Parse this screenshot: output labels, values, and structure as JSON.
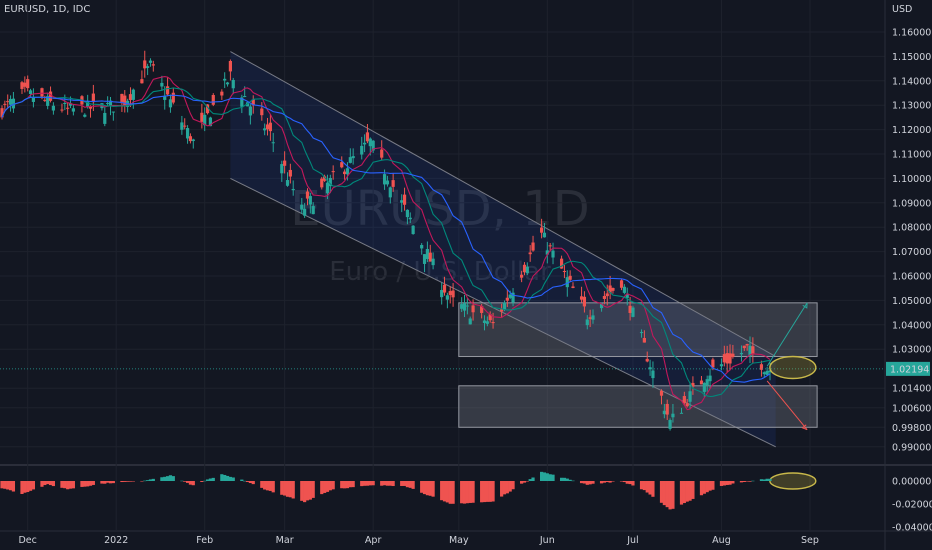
{
  "header": {
    "symbol": "EURUSD",
    "sep": ", ",
    "interval": "1D",
    "source": "IDC"
  },
  "watermark": {
    "ticker": "EURUSD, 1D",
    "name": "Euro / U.S. Dollar"
  },
  "price_axis": {
    "currency": "USD"
  },
  "last_price": {
    "label": "1.02194",
    "value": 1.02194,
    "color": "#26a69a"
  },
  "colors": {
    "up": "#26a69a",
    "down": "#ef5350",
    "ma_red": "#c2185b",
    "ma_teal": "#00897b",
    "ma_blue": "#2962ff"
  },
  "chart_data": [
    {
      "type": "candlestick",
      "title": "",
      "yticks": [
        1.16,
        1.15,
        1.14,
        1.13,
        1.12,
        1.11,
        1.1,
        1.09,
        1.08,
        1.07,
        1.06,
        1.05,
        1.04,
        1.03,
        1.014,
        1.006,
        0.998,
        0.99
      ],
      "ytick_labels": [
        "1.16000",
        "1.15000",
        "1.14000",
        "1.13000",
        "1.12000",
        "1.11000",
        "1.10000",
        "1.09000",
        "1.08000",
        "1.07000",
        "1.06000",
        "1.05000",
        "1.04000",
        "1.03000",
        "1.01400",
        "1.00600",
        "0.99800",
        "0.99000"
      ],
      "xtick_labels": [
        "Dec",
        "2022",
        "Feb",
        "Mar",
        "Apr",
        "May",
        "Jun",
        "Jul",
        "Aug",
        "Sep"
      ],
      "close_path": [
        [
          "2021-11-22",
          1.128
        ],
        [
          "2021-11-30",
          1.135
        ],
        [
          "2021-12-15",
          1.128
        ],
        [
          "2022-01-03",
          1.13
        ],
        [
          "2022-01-13",
          1.146
        ],
        [
          "2022-01-28",
          1.115
        ],
        [
          "2022-02-10",
          1.142
        ],
        [
          "2022-02-24",
          1.118
        ],
        [
          "2022-03-07",
          1.087
        ],
        [
          "2022-03-31",
          1.115
        ],
        [
          "2022-04-14",
          1.083
        ],
        [
          "2022-04-28",
          1.05
        ],
        [
          "2022-05-13",
          1.04
        ],
        [
          "2022-05-30",
          1.077
        ],
        [
          "2022-06-15",
          1.044
        ],
        [
          "2022-06-27",
          1.058
        ],
        [
          "2022-07-14",
          1.0
        ],
        [
          "2022-07-27",
          1.02
        ],
        [
          "2022-08-10",
          1.03
        ],
        [
          "2022-08-17",
          1.0219
        ]
      ],
      "zones": [
        {
          "name": "resistance-zone",
          "from": "2022-05-01",
          "to": "2022-08-31",
          "top": 1.049,
          "bottom": 1.027
        },
        {
          "name": "support-zone",
          "from": "2022-05-01",
          "to": "2022-08-31",
          "top": 1.015,
          "bottom": 0.998
        }
      ],
      "channel": {
        "upper": [
          [
            "2022-02-10",
            1.152
          ],
          [
            "2022-08-20",
            1.027
          ]
        ],
        "lower": [
          [
            "2022-02-10",
            1.1
          ],
          [
            "2022-08-20",
            0.99
          ]
        ]
      },
      "projections": [
        {
          "direction": "up",
          "from": [
            "2022-08-17",
            1.023
          ],
          "to": [
            "2022-08-31",
            1.049
          ]
        },
        {
          "direction": "down",
          "from": [
            "2022-08-17",
            1.017
          ],
          "to": [
            "2022-08-31",
            0.997
          ]
        }
      ]
    },
    {
      "type": "bar",
      "title": "",
      "yticks": [
        0,
        -0.02,
        -0.04
      ],
      "ytick_labels": [
        "0.00000",
        "-0.02000",
        "-0.04000"
      ],
      "histogram_waves": [
        [
          "2021-11-22",
          -0.006
        ],
        [
          "2021-11-29",
          -0.011
        ],
        [
          "2021-12-08",
          -0.003
        ],
        [
          "2021-12-15",
          -0.007
        ],
        [
          "2021-12-28",
          -0.002
        ],
        [
          "2022-01-10",
          0.0
        ],
        [
          "2022-01-20",
          0.005
        ],
        [
          "2022-01-28",
          -0.004
        ],
        [
          "2022-02-07",
          0.006
        ],
        [
          "2022-02-14",
          0.001
        ],
        [
          "2022-02-25",
          -0.01
        ],
        [
          "2022-03-08",
          -0.018
        ],
        [
          "2022-03-18",
          -0.007
        ],
        [
          "2022-03-31",
          -0.004
        ],
        [
          "2022-04-12",
          -0.004
        ],
        [
          "2022-04-28",
          -0.02
        ],
        [
          "2022-05-13",
          -0.018
        ],
        [
          "2022-05-30",
          0.008
        ],
        [
          "2022-06-15",
          -0.003
        ],
        [
          "2022-06-27",
          0.0
        ],
        [
          "2022-07-05",
          -0.008
        ],
        [
          "2022-07-14",
          -0.025
        ],
        [
          "2022-08-01",
          -0.004
        ],
        [
          "2022-08-17",
          0.002
        ]
      ]
    }
  ]
}
